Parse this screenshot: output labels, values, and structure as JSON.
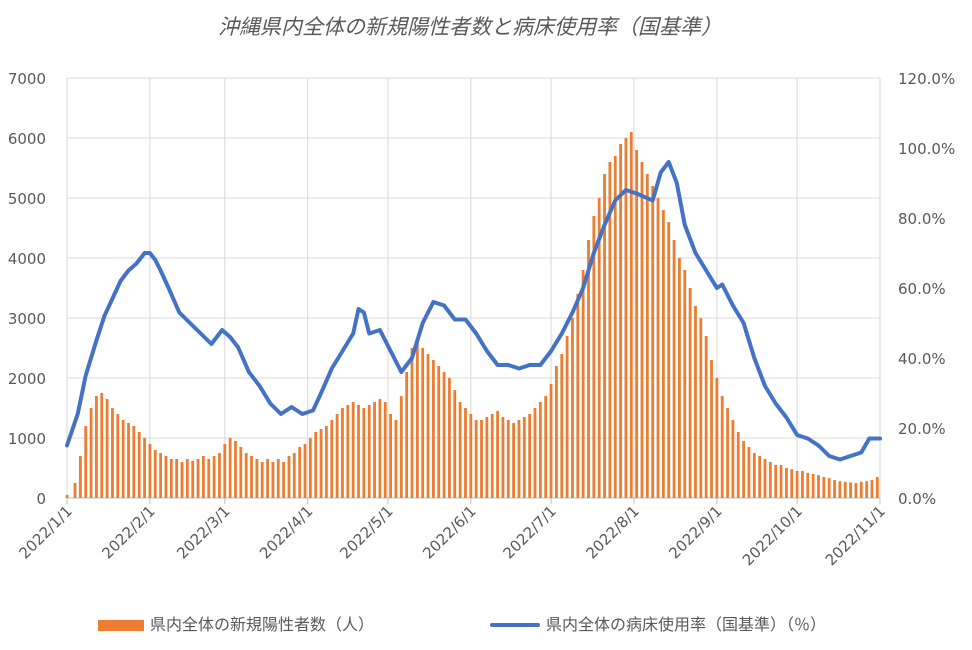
{
  "chart_data": {
    "type": "bar+line",
    "title": "沖縄県内全体の新規陽性者数と病床使用率（国基準）",
    "grid": true,
    "legend_position": "bottom",
    "y_left": {
      "min": 0,
      "max": 7000,
      "ticks": [
        "0",
        "1000",
        "2000",
        "3000",
        "4000",
        "5000",
        "6000",
        "7000"
      ]
    },
    "y_right": {
      "min": 0,
      "max": 120,
      "ticks": [
        "0.0%",
        "20.0%",
        "40.0%",
        "60.0%",
        "80.0%",
        "100.0%",
        "120.0%"
      ]
    },
    "x_range": [
      "2022-01-01",
      "2022-11-01"
    ],
    "x_ticks": [
      {
        "date": "2022-01-01",
        "label": "2022/1/1"
      },
      {
        "date": "2022-02-01",
        "label": "2022/2/1"
      },
      {
        "date": "2022-03-01",
        "label": "2022/3/1"
      },
      {
        "date": "2022-04-01",
        "label": "2022/4/1"
      },
      {
        "date": "2022-05-01",
        "label": "2022/5/1"
      },
      {
        "date": "2022-06-01",
        "label": "2022/6/1"
      },
      {
        "date": "2022-07-01",
        "label": "2022/7/1"
      },
      {
        "date": "2022-08-01",
        "label": "2022/8/1"
      },
      {
        "date": "2022-09-01",
        "label": "2022/9/1"
      },
      {
        "date": "2022-10-01",
        "label": "2022/10/1"
      },
      {
        "date": "2022-11-01",
        "label": "2022/11/1"
      }
    ],
    "series": [
      {
        "name": "県内全体の新規陽性者数（人）",
        "kind": "bar",
        "axis": "left",
        "color": "#ED7D31",
        "points": [
          [
            "2022-01-01",
            50
          ],
          [
            "2022-01-04",
            250
          ],
          [
            "2022-01-06",
            700
          ],
          [
            "2022-01-08",
            1200
          ],
          [
            "2022-01-10",
            1500
          ],
          [
            "2022-01-12",
            1700
          ],
          [
            "2022-01-14",
            1750
          ],
          [
            "2022-01-16",
            1650
          ],
          [
            "2022-01-18",
            1500
          ],
          [
            "2022-01-20",
            1400
          ],
          [
            "2022-01-22",
            1300
          ],
          [
            "2022-01-24",
            1250
          ],
          [
            "2022-01-26",
            1200
          ],
          [
            "2022-01-28",
            1100
          ],
          [
            "2022-01-30",
            1000
          ],
          [
            "2022-02-01",
            900
          ],
          [
            "2022-02-03",
            800
          ],
          [
            "2022-02-05",
            750
          ],
          [
            "2022-02-07",
            700
          ],
          [
            "2022-02-09",
            650
          ],
          [
            "2022-02-11",
            650
          ],
          [
            "2022-02-13",
            600
          ],
          [
            "2022-02-15",
            650
          ],
          [
            "2022-02-17",
            620
          ],
          [
            "2022-02-19",
            650
          ],
          [
            "2022-02-21",
            700
          ],
          [
            "2022-02-23",
            650
          ],
          [
            "2022-02-25",
            700
          ],
          [
            "2022-02-27",
            750
          ],
          [
            "2022-03-01",
            900
          ],
          [
            "2022-03-03",
            1000
          ],
          [
            "2022-03-05",
            950
          ],
          [
            "2022-03-07",
            850
          ],
          [
            "2022-03-09",
            750
          ],
          [
            "2022-03-11",
            700
          ],
          [
            "2022-03-13",
            650
          ],
          [
            "2022-03-15",
            600
          ],
          [
            "2022-03-17",
            650
          ],
          [
            "2022-03-19",
            600
          ],
          [
            "2022-03-21",
            650
          ],
          [
            "2022-03-23",
            600
          ],
          [
            "2022-03-25",
            700
          ],
          [
            "2022-03-27",
            750
          ],
          [
            "2022-03-29",
            850
          ],
          [
            "2022-03-31",
            900
          ],
          [
            "2022-04-02",
            1000
          ],
          [
            "2022-04-04",
            1100
          ],
          [
            "2022-04-06",
            1150
          ],
          [
            "2022-04-08",
            1200
          ],
          [
            "2022-04-10",
            1300
          ],
          [
            "2022-04-12",
            1400
          ],
          [
            "2022-04-14",
            1500
          ],
          [
            "2022-04-16",
            1550
          ],
          [
            "2022-04-18",
            1600
          ],
          [
            "2022-04-20",
            1550
          ],
          [
            "2022-04-22",
            1500
          ],
          [
            "2022-04-24",
            1550
          ],
          [
            "2022-04-26",
            1600
          ],
          [
            "2022-04-28",
            1650
          ],
          [
            "2022-04-30",
            1600
          ],
          [
            "2022-05-02",
            1400
          ],
          [
            "2022-05-04",
            1300
          ],
          [
            "2022-05-06",
            1700
          ],
          [
            "2022-05-08",
            2100
          ],
          [
            "2022-05-10",
            2500
          ],
          [
            "2022-05-12",
            2600
          ],
          [
            "2022-05-14",
            2500
          ],
          [
            "2022-05-16",
            2400
          ],
          [
            "2022-05-18",
            2300
          ],
          [
            "2022-05-20",
            2200
          ],
          [
            "2022-05-22",
            2100
          ],
          [
            "2022-05-24",
            2000
          ],
          [
            "2022-05-26",
            1800
          ],
          [
            "2022-05-28",
            1600
          ],
          [
            "2022-05-30",
            1500
          ],
          [
            "2022-06-01",
            1400
          ],
          [
            "2022-06-03",
            1300
          ],
          [
            "2022-06-05",
            1300
          ],
          [
            "2022-06-07",
            1350
          ],
          [
            "2022-06-09",
            1400
          ],
          [
            "2022-06-11",
            1450
          ],
          [
            "2022-06-13",
            1350
          ],
          [
            "2022-06-15",
            1300
          ],
          [
            "2022-06-17",
            1250
          ],
          [
            "2022-06-19",
            1300
          ],
          [
            "2022-06-21",
            1350
          ],
          [
            "2022-06-23",
            1400
          ],
          [
            "2022-06-25",
            1500
          ],
          [
            "2022-06-27",
            1600
          ],
          [
            "2022-06-29",
            1700
          ],
          [
            "2022-07-01",
            1900
          ],
          [
            "2022-07-03",
            2200
          ],
          [
            "2022-07-05",
            2400
          ],
          [
            "2022-07-07",
            2700
          ],
          [
            "2022-07-09",
            3000
          ],
          [
            "2022-07-11",
            3400
          ],
          [
            "2022-07-13",
            3800
          ],
          [
            "2022-07-15",
            4300
          ],
          [
            "2022-07-17",
            4700
          ],
          [
            "2022-07-19",
            5000
          ],
          [
            "2022-07-21",
            5400
          ],
          [
            "2022-07-23",
            5600
          ],
          [
            "2022-07-25",
            5700
          ],
          [
            "2022-07-27",
            5900
          ],
          [
            "2022-07-29",
            6000
          ],
          [
            "2022-07-31",
            6100
          ],
          [
            "2022-08-02",
            5800
          ],
          [
            "2022-08-04",
            5600
          ],
          [
            "2022-08-06",
            5400
          ],
          [
            "2022-08-08",
            5200
          ],
          [
            "2022-08-10",
            5000
          ],
          [
            "2022-08-12",
            4800
          ],
          [
            "2022-08-14",
            4600
          ],
          [
            "2022-08-16",
            4300
          ],
          [
            "2022-08-18",
            4000
          ],
          [
            "2022-08-20",
            3800
          ],
          [
            "2022-08-22",
            3500
          ],
          [
            "2022-08-24",
            3200
          ],
          [
            "2022-08-26",
            3000
          ],
          [
            "2022-08-28",
            2700
          ],
          [
            "2022-08-30",
            2300
          ],
          [
            "2022-09-01",
            2000
          ],
          [
            "2022-09-03",
            1700
          ],
          [
            "2022-09-05",
            1500
          ],
          [
            "2022-09-07",
            1300
          ],
          [
            "2022-09-09",
            1100
          ],
          [
            "2022-09-11",
            950
          ],
          [
            "2022-09-13",
            850
          ],
          [
            "2022-09-15",
            750
          ],
          [
            "2022-09-17",
            700
          ],
          [
            "2022-09-19",
            650
          ],
          [
            "2022-09-21",
            600
          ],
          [
            "2022-09-23",
            550
          ],
          [
            "2022-09-25",
            550
          ],
          [
            "2022-09-27",
            500
          ],
          [
            "2022-09-29",
            480
          ],
          [
            "2022-10-01",
            450
          ],
          [
            "2022-10-03",
            450
          ],
          [
            "2022-10-05",
            420
          ],
          [
            "2022-10-07",
            400
          ],
          [
            "2022-10-09",
            380
          ],
          [
            "2022-10-11",
            350
          ],
          [
            "2022-10-13",
            330
          ],
          [
            "2022-10-15",
            300
          ],
          [
            "2022-10-17",
            280
          ],
          [
            "2022-10-19",
            270
          ],
          [
            "2022-10-21",
            260
          ],
          [
            "2022-10-23",
            250
          ],
          [
            "2022-10-25",
            270
          ],
          [
            "2022-10-27",
            280
          ],
          [
            "2022-10-29",
            300
          ],
          [
            "2022-10-31",
            350
          ]
        ]
      },
      {
        "name": "県内全体の病床使用率（国基準）（％）",
        "kind": "line",
        "axis": "right",
        "color": "#4472C4",
        "points": [
          [
            "2022-01-01",
            15
          ],
          [
            "2022-01-05",
            24
          ],
          [
            "2022-01-08",
            35
          ],
          [
            "2022-01-12",
            45
          ],
          [
            "2022-01-15",
            52
          ],
          [
            "2022-01-18",
            57
          ],
          [
            "2022-01-21",
            62
          ],
          [
            "2022-01-24",
            65
          ],
          [
            "2022-01-27",
            67
          ],
          [
            "2022-01-30",
            70
          ],
          [
            "2022-02-01",
            70
          ],
          [
            "2022-02-03",
            68
          ],
          [
            "2022-02-05",
            65
          ],
          [
            "2022-02-08",
            60
          ],
          [
            "2022-02-12",
            53
          ],
          [
            "2022-02-16",
            50
          ],
          [
            "2022-02-20",
            47
          ],
          [
            "2022-02-24",
            44
          ],
          [
            "2022-02-28",
            48
          ],
          [
            "2022-03-03",
            46
          ],
          [
            "2022-03-06",
            43
          ],
          [
            "2022-03-10",
            36
          ],
          [
            "2022-03-14",
            32
          ],
          [
            "2022-03-18",
            27
          ],
          [
            "2022-03-22",
            24
          ],
          [
            "2022-03-26",
            26
          ],
          [
            "2022-03-30",
            24
          ],
          [
            "2022-04-03",
            25
          ],
          [
            "2022-04-06",
            30
          ],
          [
            "2022-04-10",
            37
          ],
          [
            "2022-04-14",
            42
          ],
          [
            "2022-04-18",
            47
          ],
          [
            "2022-04-20",
            54
          ],
          [
            "2022-04-22",
            53
          ],
          [
            "2022-04-24",
            47
          ],
          [
            "2022-04-28",
            48
          ],
          [
            "2022-05-02",
            42
          ],
          [
            "2022-05-06",
            36
          ],
          [
            "2022-05-10",
            40
          ],
          [
            "2022-05-14",
            50
          ],
          [
            "2022-05-18",
            56
          ],
          [
            "2022-05-22",
            55
          ],
          [
            "2022-05-26",
            51
          ],
          [
            "2022-05-30",
            51
          ],
          [
            "2022-06-03",
            47
          ],
          [
            "2022-06-07",
            42
          ],
          [
            "2022-06-11",
            38
          ],
          [
            "2022-06-15",
            38
          ],
          [
            "2022-06-19",
            37
          ],
          [
            "2022-06-23",
            38
          ],
          [
            "2022-06-27",
            38
          ],
          [
            "2022-07-01",
            42
          ],
          [
            "2022-07-05",
            47
          ],
          [
            "2022-07-09",
            53
          ],
          [
            "2022-07-13",
            60
          ],
          [
            "2022-07-17",
            70
          ],
          [
            "2022-07-21",
            78
          ],
          [
            "2022-07-25",
            85
          ],
          [
            "2022-07-29",
            88
          ],
          [
            "2022-08-02",
            87
          ],
          [
            "2022-08-05",
            86
          ],
          [
            "2022-08-08",
            85
          ],
          [
            "2022-08-11",
            93
          ],
          [
            "2022-08-14",
            96
          ],
          [
            "2022-08-17",
            90
          ],
          [
            "2022-08-20",
            78
          ],
          [
            "2022-08-24",
            70
          ],
          [
            "2022-08-28",
            65
          ],
          [
            "2022-09-01",
            60
          ],
          [
            "2022-09-03",
            61
          ],
          [
            "2022-09-07",
            55
          ],
          [
            "2022-09-11",
            50
          ],
          [
            "2022-09-15",
            40
          ],
          [
            "2022-09-19",
            32
          ],
          [
            "2022-09-23",
            27
          ],
          [
            "2022-09-27",
            23
          ],
          [
            "2022-10-01",
            18
          ],
          [
            "2022-10-05",
            17
          ],
          [
            "2022-10-09",
            15
          ],
          [
            "2022-10-13",
            12
          ],
          [
            "2022-10-17",
            11
          ],
          [
            "2022-10-21",
            12
          ],
          [
            "2022-10-25",
            13
          ],
          [
            "2022-10-28",
            17
          ],
          [
            "2022-11-01",
            17
          ]
        ]
      }
    ]
  }
}
